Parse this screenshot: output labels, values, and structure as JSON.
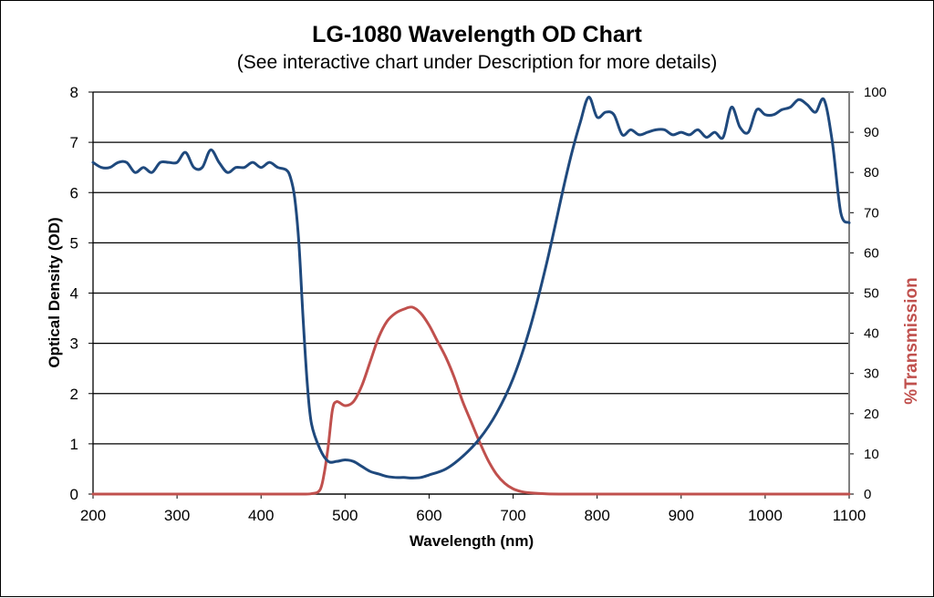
{
  "chart_data": {
    "type": "line",
    "title": "LG-1080 Wavelength OD Chart",
    "subtitle": "(See interactive chart under Description for more details)",
    "xlabel": "Wavelength (nm)",
    "ylabel": "Optical Density (OD)",
    "y2label": "%Transmission",
    "xlim": [
      200,
      1100
    ],
    "ylim": [
      0,
      8
    ],
    "y2lim": [
      0,
      100
    ],
    "x_ticks": [
      "200",
      "300",
      "400",
      "500",
      "600",
      "700",
      "800",
      "900",
      "1000",
      "1100"
    ],
    "y_ticks": [
      "0",
      "1",
      "2",
      "3",
      "4",
      "5",
      "6",
      "7",
      "8"
    ],
    "y2_ticks": [
      "0",
      "10",
      "20",
      "30",
      "40",
      "50",
      "60",
      "70",
      "80",
      "90",
      "100"
    ],
    "grid": true,
    "series": [
      {
        "axis": "left",
        "color": "#1f497d",
        "x": [
          200,
          210,
          220,
          230,
          240,
          250,
          260,
          270,
          280,
          290,
          300,
          310,
          320,
          330,
          340,
          350,
          360,
          370,
          380,
          390,
          400,
          410,
          420,
          430,
          435,
          440,
          445,
          450,
          455,
          460,
          470,
          480,
          490,
          500,
          510,
          520,
          530,
          540,
          550,
          560,
          570,
          580,
          590,
          600,
          620,
          640,
          660,
          680,
          700,
          720,
          740,
          760,
          770,
          780,
          790,
          800,
          810,
          820,
          830,
          840,
          850,
          860,
          870,
          880,
          890,
          900,
          910,
          920,
          930,
          940,
          950,
          960,
          970,
          980,
          990,
          1000,
          1010,
          1020,
          1030,
          1040,
          1050,
          1060,
          1070,
          1080,
          1090,
          1100
        ],
        "values": [
          6.6,
          6.5,
          6.5,
          6.6,
          6.6,
          6.4,
          6.5,
          6.4,
          6.6,
          6.6,
          6.6,
          6.8,
          6.5,
          6.5,
          6.85,
          6.6,
          6.4,
          6.5,
          6.5,
          6.6,
          6.5,
          6.6,
          6.5,
          6.45,
          6.3,
          5.9,
          5.0,
          3.5,
          2.2,
          1.4,
          0.9,
          0.65,
          0.65,
          0.68,
          0.65,
          0.55,
          0.45,
          0.4,
          0.35,
          0.33,
          0.33,
          0.32,
          0.33,
          0.38,
          0.5,
          0.75,
          1.1,
          1.6,
          2.3,
          3.3,
          4.6,
          6.1,
          6.8,
          7.4,
          7.9,
          7.5,
          7.6,
          7.55,
          7.15,
          7.25,
          7.15,
          7.2,
          7.25,
          7.25,
          7.15,
          7.2,
          7.15,
          7.25,
          7.1,
          7.2,
          7.1,
          7.7,
          7.3,
          7.2,
          7.65,
          7.55,
          7.55,
          7.65,
          7.7,
          7.85,
          7.75,
          7.6,
          7.85,
          7.0,
          5.6,
          5.4
        ]
      },
      {
        "axis": "right",
        "color": "#c0504d",
        "x": [
          200,
          250,
          300,
          350,
          400,
          440,
          460,
          470,
          475,
          480,
          485,
          490,
          500,
          510,
          520,
          530,
          540,
          550,
          560,
          570,
          580,
          590,
          600,
          610,
          620,
          630,
          640,
          650,
          660,
          670,
          680,
          690,
          700,
          710,
          720,
          740,
          760,
          800,
          900,
          1000,
          1100
        ],
        "values": [
          0,
          0,
          0,
          0,
          0,
          0,
          0.1,
          1,
          5,
          12,
          21,
          23,
          22,
          23,
          27,
          33,
          39,
          43,
          45,
          46,
          46.5,
          45,
          42,
          38,
          34,
          29,
          23,
          18,
          13,
          8.5,
          5,
          2.7,
          1.3,
          0.6,
          0.3,
          0.05,
          0,
          0,
          0,
          0,
          0
        ]
      }
    ]
  }
}
